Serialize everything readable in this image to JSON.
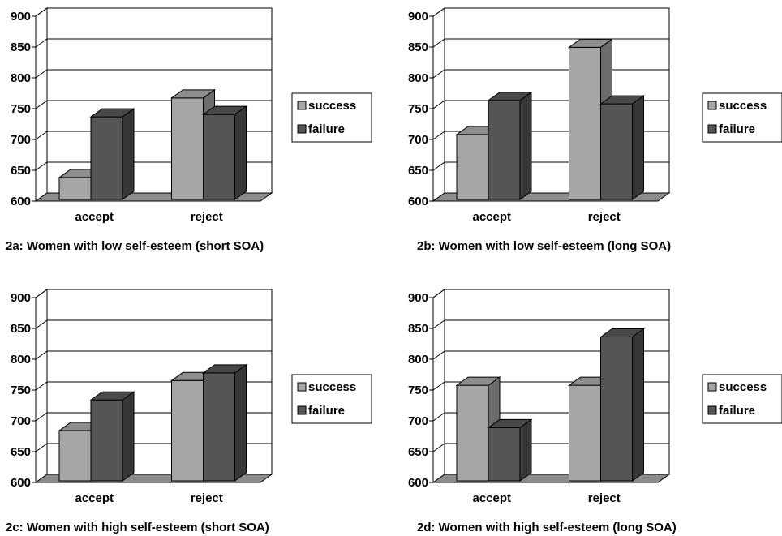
{
  "legend_colors": {
    "success": "#a6a6a6",
    "failure": "#555555"
  },
  "chart_data": [
    {
      "type": "bar",
      "caption": "2a: Women with low self-esteem (short SOA)",
      "categories": [
        "accept",
        "reject"
      ],
      "ylim": [
        600,
        900
      ],
      "yticks": [
        "600",
        "650",
        "700",
        "750",
        "800",
        "850",
        "900"
      ],
      "series": [
        {
          "name": "success",
          "values": [
            640,
            775
          ]
        },
        {
          "name": "failure",
          "values": [
            743,
            747
          ]
        }
      ],
      "legend_position": "right",
      "grid": true
    },
    {
      "type": "bar",
      "caption": "2b: Women with low self-esteem (long SOA)",
      "categories": [
        "accept",
        "reject"
      ],
      "ylim": [
        600,
        900
      ],
      "yticks": [
        "600",
        "650",
        "700",
        "750",
        "800",
        "850",
        "900"
      ],
      "series": [
        {
          "name": "success",
          "values": [
            713,
            861
          ]
        },
        {
          "name": "failure",
          "values": [
            771,
            765
          ]
        }
      ],
      "legend_position": "right",
      "grid": true
    },
    {
      "type": "bar",
      "caption": "2c: Women with high self-esteem (short SOA)",
      "categories": [
        "accept",
        "reject"
      ],
      "ylim": [
        600,
        900
      ],
      "yticks": [
        "600",
        "650",
        "700",
        "750",
        "800",
        "850",
        "900"
      ],
      "series": [
        {
          "name": "success",
          "values": [
            688,
            773
          ]
        },
        {
          "name": "failure",
          "values": [
            740,
            786
          ]
        }
      ],
      "legend_position": "right",
      "grid": true
    },
    {
      "type": "bar",
      "caption": "2d: Women with high self-esteem (long SOA)",
      "categories": [
        "accept",
        "reject"
      ],
      "ylim": [
        600,
        900
      ],
      "yticks": [
        "600",
        "650",
        "700",
        "750",
        "800",
        "850",
        "900"
      ],
      "series": [
        {
          "name": "success",
          "values": [
            765,
            765
          ]
        },
        {
          "name": "failure",
          "values": [
            693,
            847
          ]
        }
      ],
      "legend_position": "right",
      "grid": true
    }
  ]
}
